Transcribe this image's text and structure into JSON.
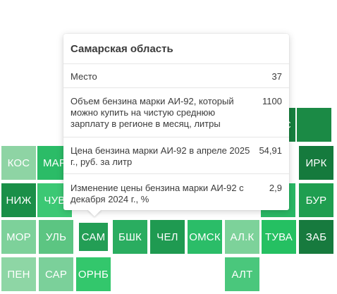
{
  "map": {
    "cells": [
      {
        "id": "kos",
        "label": "КОС",
        "color": "#8ed4a4"
      },
      {
        "id": "mar",
        "label": "МАР",
        "color": "#2bbc67"
      },
      {
        "id": "irk",
        "label": "ИРК",
        "color": "#157a3d"
      },
      {
        "id": "niz",
        "label": "НИЖ",
        "color": "#1a8f48"
      },
      {
        "id": "chu",
        "label": "ЧУВ",
        "color": "#3cc874"
      },
      {
        "id": "bur",
        "label": "БУР",
        "color": "#1f9e50"
      },
      {
        "id": "mor",
        "label": "МОР",
        "color": "#7dd19a"
      },
      {
        "id": "ulb",
        "label": "УЛЬ",
        "color": "#5cc582"
      },
      {
        "id": "sam",
        "label": "САМ",
        "color": "#239e55"
      },
      {
        "id": "bshk",
        "label": "БШК",
        "color": "#2aad60"
      },
      {
        "id": "chel",
        "label": "ЧЕЛ",
        "color": "#1f9a51"
      },
      {
        "id": "omsk",
        "label": "ОМСК",
        "color": "#2bbd68"
      },
      {
        "id": "alk",
        "label": "АЛ.К",
        "color": "#7dd29a"
      },
      {
        "id": "tuva",
        "label": "ТУВА",
        "color": "#25c062"
      },
      {
        "id": "zab",
        "label": "ЗАБ",
        "color": "#177a3e"
      },
      {
        "id": "pen",
        "label": "ПЕН",
        "color": "#8ed6a5"
      },
      {
        "id": "sar",
        "label": "САР",
        "color": "#7bd09a"
      },
      {
        "id": "ornb",
        "label": "ОРНБ",
        "color": "#33c76c"
      },
      {
        "id": "alt",
        "label": "АЛТ",
        "color": "#4ac77c"
      },
      {
        "id": "c_partial",
        "label": "С",
        "color": "#17803f"
      },
      {
        "id": "hidden1",
        "label": "",
        "color": "#1b8a45"
      },
      {
        "id": "hidden2",
        "label": "",
        "color": "#29b865"
      }
    ]
  },
  "tooltip": {
    "title": "Самарская область",
    "rows": [
      {
        "label": "Место",
        "value": "37"
      },
      {
        "label": "Объем бензина марки АИ-92, который можно купить на чистую среднюю зарплату в регионе в месяц, литры",
        "value": "1100"
      },
      {
        "label": "Цена бензина марки АИ-92 в апреле 2025 г., руб. за литр",
        "value": "54,91"
      },
      {
        "label": "Изменение цены бензина марки АИ-92 с декабря 2024 г., %",
        "value": "2,9"
      }
    ]
  }
}
